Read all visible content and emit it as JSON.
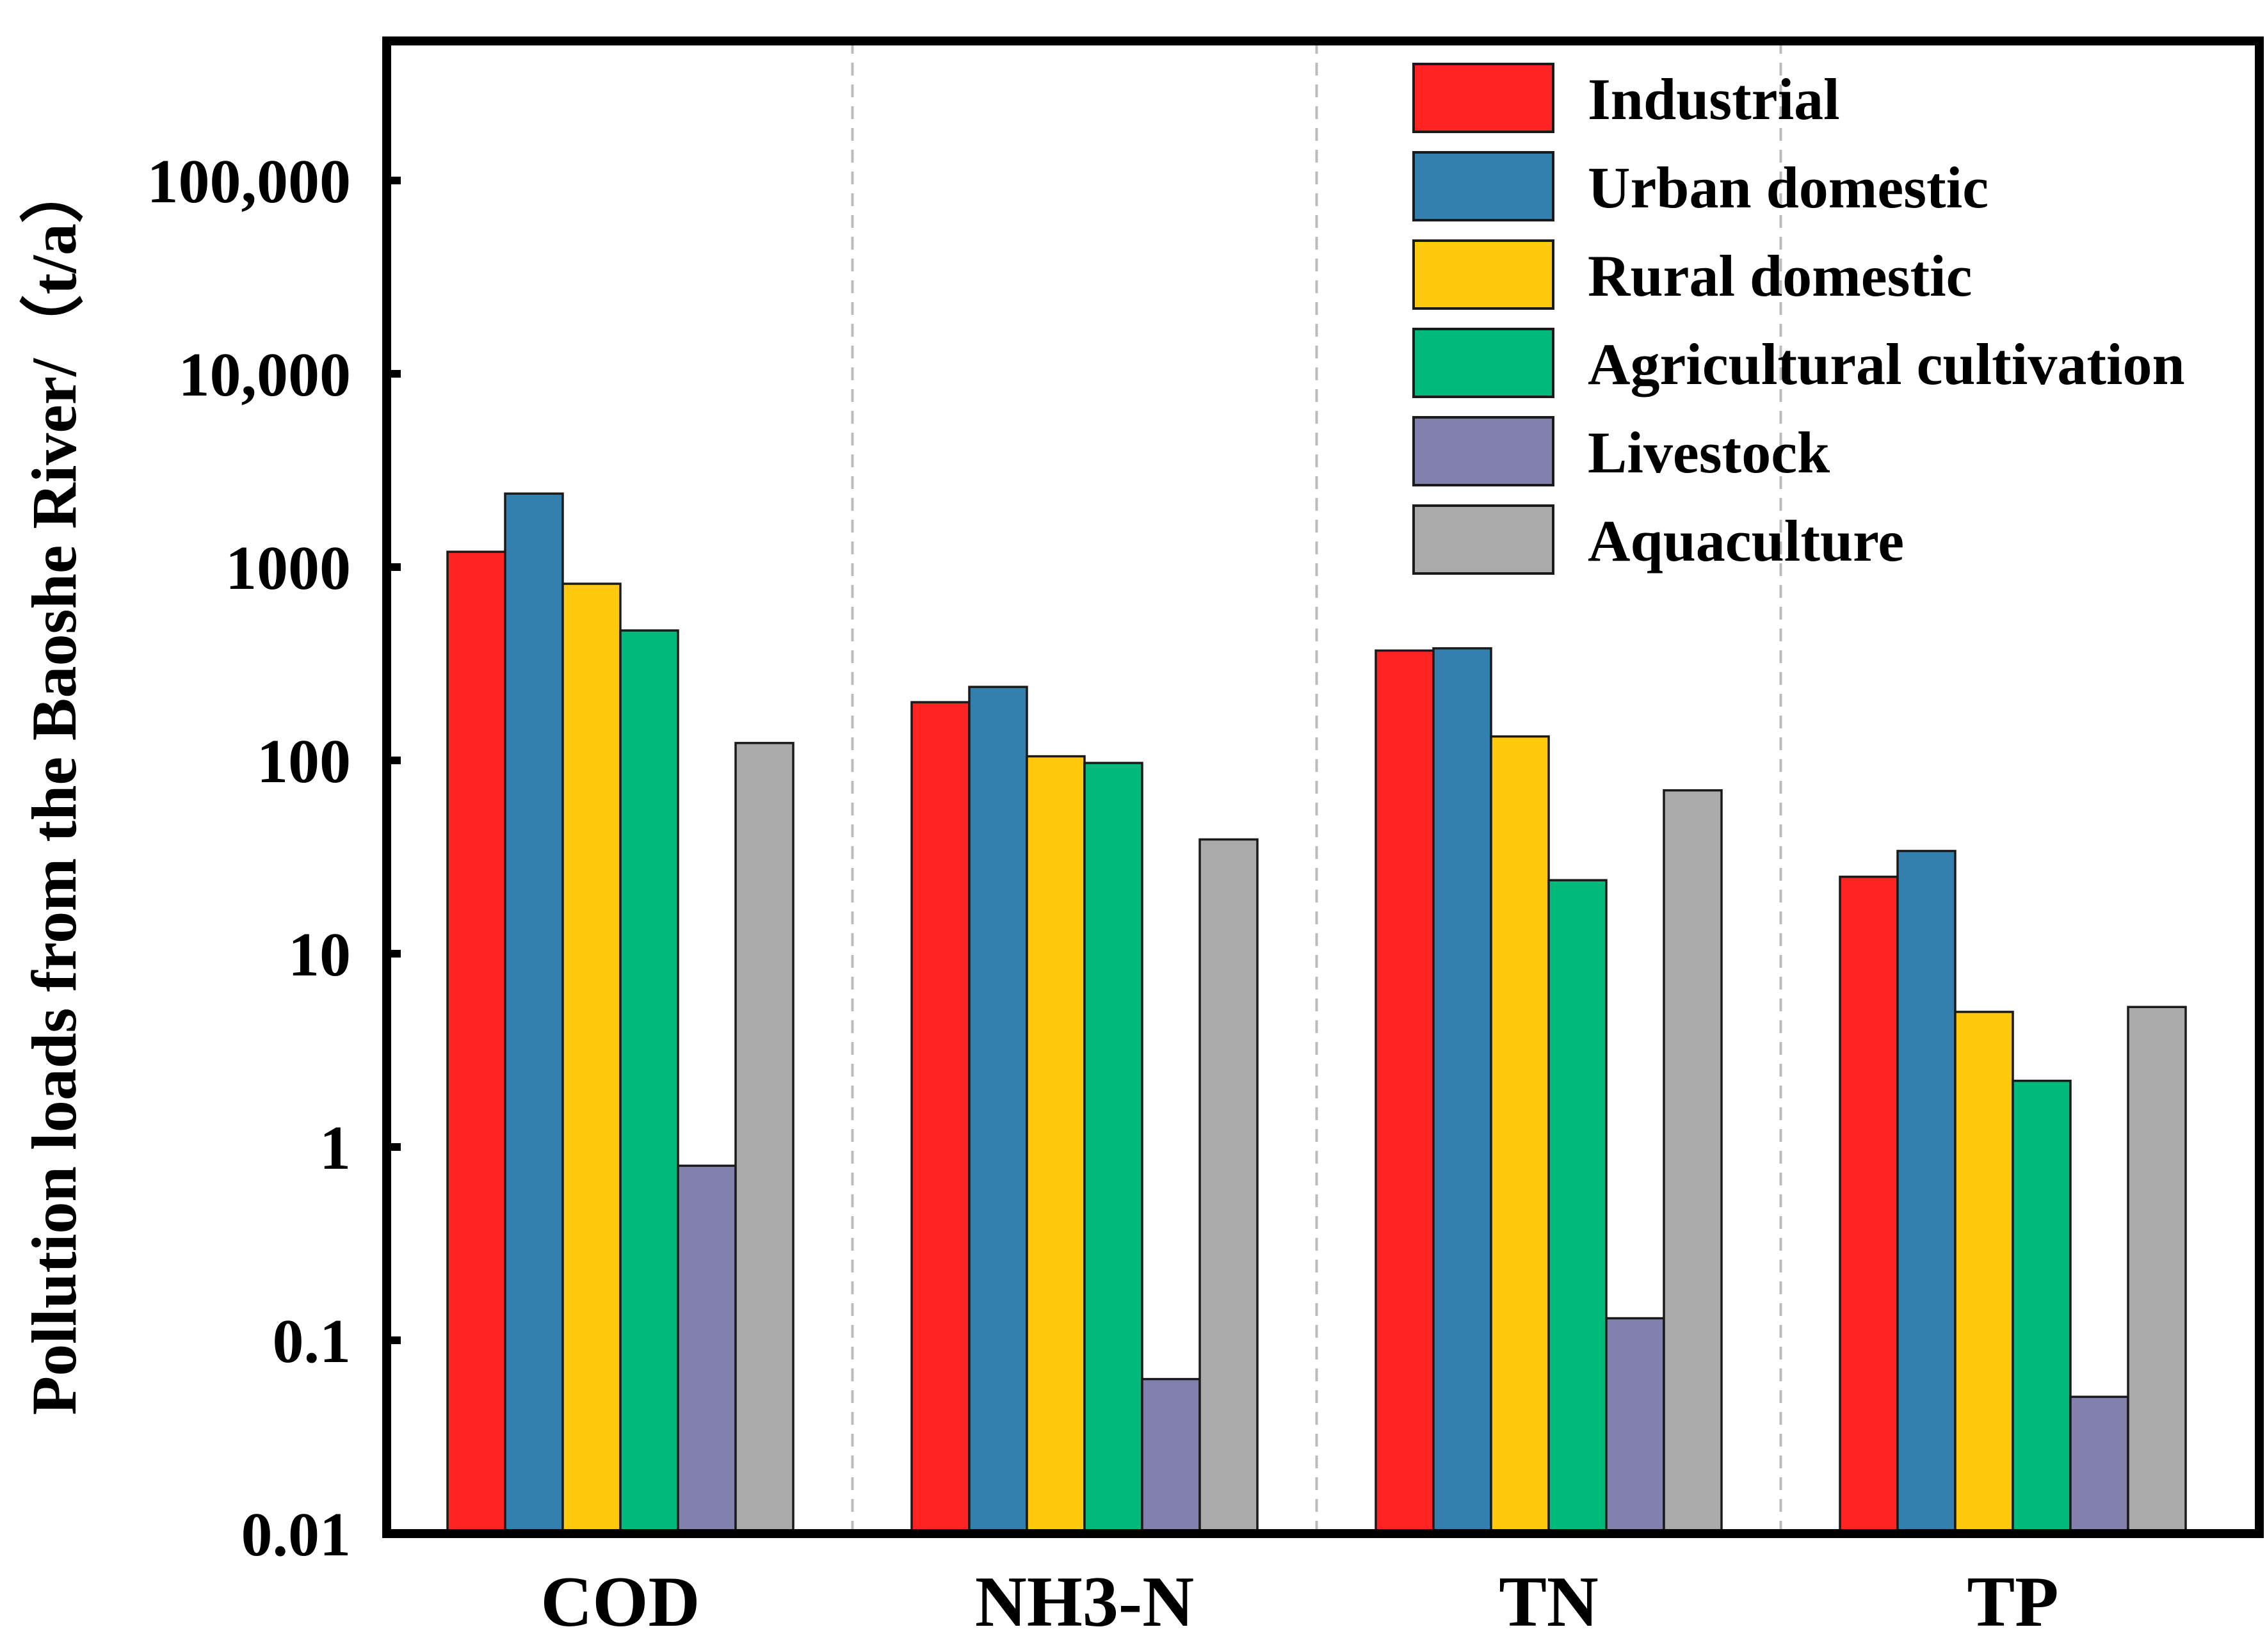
{
  "chart_data": {
    "type": "bar",
    "title": "",
    "xlabel": "",
    "ylabel": "Pollution loads from the Baoshe River/（t/a）",
    "yscale": "log",
    "ylim": [
      0.01,
      500000
    ],
    "grid": false,
    "legend_position": "top-right",
    "categories": [
      "COD",
      "NH3-N",
      "TN",
      "TP"
    ],
    "y_ticks": [
      {
        "value": 0.01,
        "label": "0.01"
      },
      {
        "value": 0.1,
        "label": "0.1"
      },
      {
        "value": 1,
        "label": "1"
      },
      {
        "value": 10,
        "label": "10"
      },
      {
        "value": 100,
        "label": "100"
      },
      {
        "value": 1000,
        "label": "1000"
      },
      {
        "value": 10000,
        "label": "10,000"
      },
      {
        "value": 100000,
        "label": "100,000"
      }
    ],
    "series": [
      {
        "name": "Industrial",
        "color": "#ff2424",
        "values": [
          1200,
          200,
          370,
          25
        ]
      },
      {
        "name": "Urban domestic",
        "color": "#337fae",
        "values": [
          2400,
          240,
          380,
          34
        ]
      },
      {
        "name": "Rural domestic",
        "color": "#ffc90e",
        "values": [
          820,
          105,
          133,
          5
        ]
      },
      {
        "name": "Agricultural cultivation",
        "color": "#00b97b",
        "values": [
          470,
          97,
          24,
          2.2
        ]
      },
      {
        "name": "Livestock",
        "color": "#8280ad",
        "values": [
          0.8,
          0.063,
          0.13,
          0.051
        ]
      },
      {
        "name": "Aquaculture",
        "color": "#aaaaaa",
        "values": [
          123,
          39,
          70,
          5.3
        ]
      }
    ]
  }
}
